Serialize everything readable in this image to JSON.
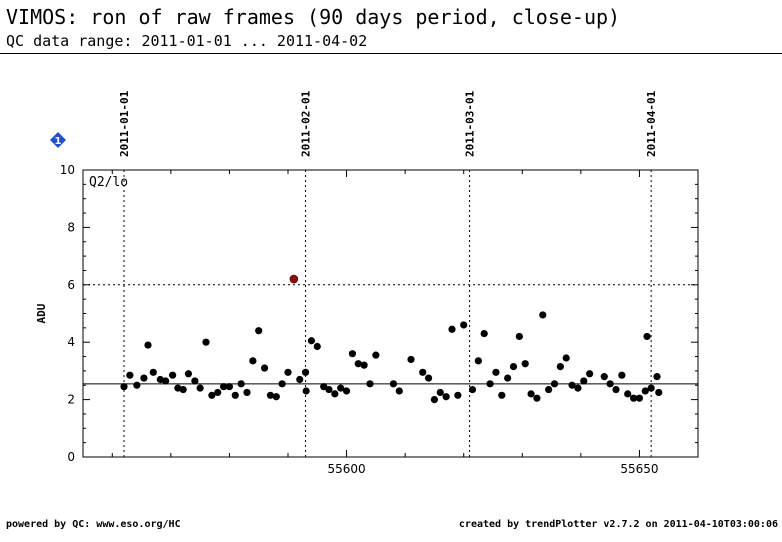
{
  "header": {
    "title": "VIMOS: ron of raw frames (90 days period, close-up)",
    "subtitle": "QC data range: 2011-01-01 ... 2011-04-02"
  },
  "footer": {
    "left": "powered by QC: www.eso.org/HC",
    "right": "created by trendPlotter v2.7.2 on 2011-04-10T03:00:06"
  },
  "badge": {
    "label": "1",
    "color": "#1f4fd8"
  },
  "chart_data": {
    "type": "scatter",
    "panel_label": "Q2/lo",
    "ylabel": "ADU",
    "xlim": [
      55555,
      55660
    ],
    "ylim": [
      0,
      10
    ],
    "x_ticks": [
      55600,
      55650
    ],
    "y_ticks": [
      0,
      2,
      4,
      6,
      8,
      10
    ],
    "date_markers": [
      {
        "label": "2011-01-01",
        "x": 55562
      },
      {
        "label": "2011-02-01",
        "x": 55593
      },
      {
        "label": "2011-03-01",
        "x": 55621
      },
      {
        "label": "2011-04-01",
        "x": 55652
      }
    ],
    "threshold_line": 6,
    "reference_line": 2.55,
    "point_color": "#000000",
    "outlier_color": "#8b1010",
    "points": [
      [
        55562.0,
        2.45
      ],
      [
        55563.0,
        2.85
      ],
      [
        55564.2,
        2.5
      ],
      [
        55565.4,
        2.75
      ],
      [
        55566.1,
        3.9
      ],
      [
        55567.0,
        2.95
      ],
      [
        55568.2,
        2.7
      ],
      [
        55569.1,
        2.65
      ],
      [
        55570.3,
        2.85
      ],
      [
        55571.2,
        2.4
      ],
      [
        55572.1,
        2.35
      ],
      [
        55573.0,
        2.9
      ],
      [
        55574.1,
        2.65
      ],
      [
        55575.0,
        2.4
      ],
      [
        55576.0,
        4.0
      ],
      [
        55577.0,
        2.15
      ],
      [
        55578.0,
        2.25
      ],
      [
        55579.0,
        2.45
      ],
      [
        55580.0,
        2.45
      ],
      [
        55581.0,
        2.15
      ],
      [
        55582.0,
        2.55
      ],
      [
        55583.0,
        2.25
      ],
      [
        55584.0,
        3.35
      ],
      [
        55585.0,
        4.4
      ],
      [
        55586.0,
        3.1
      ],
      [
        55587.0,
        2.15
      ],
      [
        55588.0,
        2.1
      ],
      [
        55589.0,
        2.55
      ],
      [
        55590.0,
        2.95
      ],
      [
        55592.0,
        2.7
      ],
      [
        55593.0,
        2.95
      ],
      [
        55593.1,
        2.3
      ],
      [
        55594.0,
        4.05
      ],
      [
        55595.0,
        3.85
      ],
      [
        55596.1,
        2.45
      ],
      [
        55597.0,
        2.35
      ],
      [
        55598.0,
        2.2
      ],
      [
        55599.0,
        2.4
      ],
      [
        55600.0,
        2.3
      ],
      [
        55601.0,
        3.6
      ],
      [
        55602.0,
        3.25
      ],
      [
        55603.0,
        3.2
      ],
      [
        55604.0,
        2.55
      ],
      [
        55605.0,
        3.55
      ],
      [
        55608.0,
        2.55
      ],
      [
        55609.0,
        2.3
      ],
      [
        55611.0,
        3.4
      ],
      [
        55613.0,
        2.95
      ],
      [
        55614.0,
        2.75
      ],
      [
        55615.0,
        2.0
      ],
      [
        55616.0,
        2.25
      ],
      [
        55617.0,
        2.1
      ],
      [
        55618.0,
        4.45
      ],
      [
        55619.0,
        2.15
      ],
      [
        55620.0,
        4.6
      ],
      [
        55621.5,
        2.35
      ],
      [
        55622.5,
        3.35
      ],
      [
        55623.5,
        4.3
      ],
      [
        55624.5,
        2.55
      ],
      [
        55625.5,
        2.95
      ],
      [
        55626.5,
        2.15
      ],
      [
        55627.5,
        2.75
      ],
      [
        55628.5,
        3.15
      ],
      [
        55629.5,
        4.2
      ],
      [
        55630.5,
        3.25
      ],
      [
        55631.5,
        2.2
      ],
      [
        55632.5,
        2.05
      ],
      [
        55633.5,
        4.95
      ],
      [
        55634.5,
        2.35
      ],
      [
        55635.5,
        2.55
      ],
      [
        55636.5,
        3.15
      ],
      [
        55637.5,
        3.45
      ],
      [
        55638.5,
        2.5
      ],
      [
        55639.5,
        2.4
      ],
      [
        55640.5,
        2.65
      ],
      [
        55641.5,
        2.9
      ],
      [
        55644.0,
        2.8
      ],
      [
        55645.0,
        2.55
      ],
      [
        55646.0,
        2.35
      ],
      [
        55647.0,
        2.85
      ],
      [
        55648.0,
        2.2
      ],
      [
        55649.0,
        2.05
      ],
      [
        55650.0,
        2.05
      ],
      [
        55651.0,
        2.3
      ],
      [
        55651.3,
        4.2
      ],
      [
        55652.0,
        2.4
      ],
      [
        55653.0,
        2.8
      ],
      [
        55653.3,
        2.25
      ]
    ],
    "outliers": [
      [
        55591,
        6.2
      ]
    ]
  }
}
